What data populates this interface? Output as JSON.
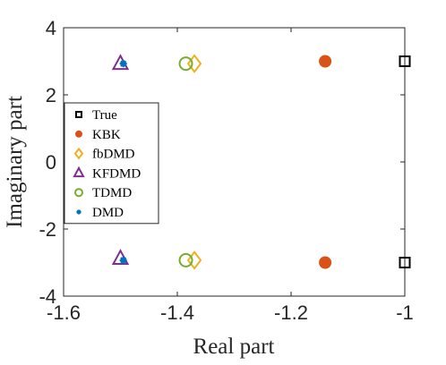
{
  "chart_data": {
    "type": "scatter",
    "xlabel": "Real part",
    "ylabel": "Imaginary part",
    "xlim": [
      -1.6,
      -1.0
    ],
    "ylim": [
      -4,
      4
    ],
    "x_ticks": [
      -1.6,
      -1.4,
      -1.2,
      -1.0
    ],
    "x_tick_labels": [
      "-1.6",
      "-1.4",
      "-1.2",
      "-1"
    ],
    "y_ticks": [
      -4,
      -2,
      0,
      2,
      4
    ],
    "y_tick_labels": [
      "-4",
      "-2",
      "0",
      "2",
      "4"
    ],
    "grid": false,
    "legend_position": "left",
    "series": [
      {
        "name": "True",
        "marker": "square",
        "color": "#000000",
        "filled": false,
        "points": [
          [
            -1.0,
            3.0
          ],
          [
            -1.0,
            -3.0
          ]
        ]
      },
      {
        "name": "KBK",
        "marker": "circle",
        "color": "#D95319",
        "filled": true,
        "points": [
          [
            -1.14,
            3.0
          ],
          [
            -1.14,
            -3.0
          ]
        ]
      },
      {
        "name": "fbDMD",
        "marker": "diamond",
        "color": "#EDB120",
        "filled": false,
        "points": [
          [
            -1.37,
            2.93
          ],
          [
            -1.37,
            -2.93
          ]
        ]
      },
      {
        "name": "KFDMD",
        "marker": "triangle",
        "color": "#7E2F8E",
        "filled": false,
        "points": [
          [
            -1.5,
            2.93
          ],
          [
            -1.5,
            -2.88
          ]
        ]
      },
      {
        "name": "TDMD",
        "marker": "circle",
        "color": "#77AC30",
        "filled": false,
        "points": [
          [
            -1.385,
            2.93
          ],
          [
            -1.385,
            -2.93
          ]
        ]
      },
      {
        "name": "DMD",
        "marker": "star",
        "color": "#0072BD",
        "filled": true,
        "points": [
          [
            -1.495,
            2.93
          ],
          [
            -1.495,
            -2.93
          ]
        ]
      }
    ]
  }
}
